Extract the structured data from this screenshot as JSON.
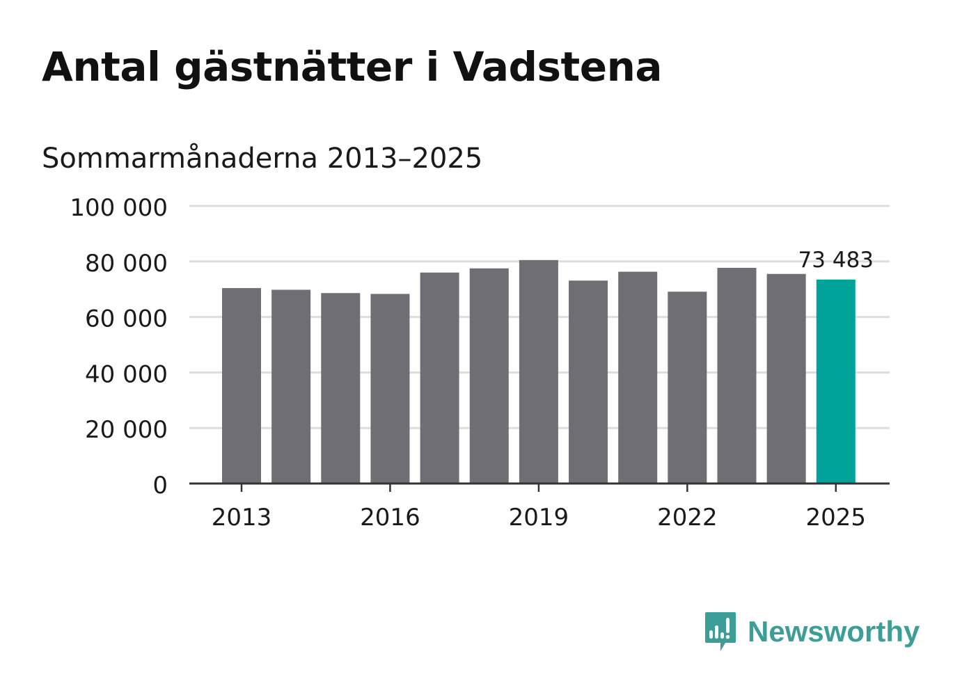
{
  "header": {
    "title": "Antal gästnätter i Vadstena",
    "subtitle": "Sommarmånaderna 2013–2025"
  },
  "brand": {
    "name": "Newsworthy",
    "logo_icon": "bar-chart-speech-bubble-icon",
    "color": "#3c9e96"
  },
  "colors": {
    "bar": "#6f6e74",
    "highlight": "#00a39a",
    "grid": "#dddddd",
    "axis": "#333333"
  },
  "chart_data": {
    "type": "bar",
    "categories": [
      "2013",
      "2014",
      "2015",
      "2016",
      "2017",
      "2018",
      "2019",
      "2020",
      "2021",
      "2022",
      "2023",
      "2024",
      "2025"
    ],
    "values": [
      70400,
      69800,
      68600,
      68300,
      76000,
      77500,
      80500,
      73100,
      76300,
      69100,
      77700,
      75500,
      73483
    ],
    "ylim": [
      0,
      100000
    ],
    "yticks": [
      0,
      20000,
      40000,
      60000,
      80000,
      100000
    ],
    "ytick_labels": [
      "0",
      "20 000",
      "40 000",
      "60 000",
      "80 000",
      "100 000"
    ],
    "xtick_labels": [
      "2013",
      "2016",
      "2019",
      "2022",
      "2025"
    ],
    "highlight_index": 12,
    "data_labels": [
      {
        "index": 12,
        "text": "73 483"
      }
    ],
    "grid": true,
    "legend": "none"
  }
}
